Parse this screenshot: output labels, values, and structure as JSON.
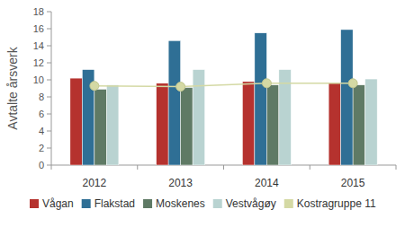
{
  "chart_data": {
    "type": "bar",
    "y_label": "Avtalte årsverk",
    "categories": [
      "2012",
      "2013",
      "2014",
      "2015"
    ],
    "series": [
      {
        "name": "Vågan",
        "color": "#b5322e",
        "values": [
          10.2,
          9.6,
          9.8,
          9.6
        ]
      },
      {
        "name": "Flakstad",
        "color": "#2f6f95",
        "values": [
          11.2,
          14.6,
          15.5,
          15.9
        ]
      },
      {
        "name": "Moskenes",
        "color": "#5f7a65",
        "values": [
          8.9,
          9.1,
          9.4,
          9.4
        ]
      },
      {
        "name": "Vestvågøy",
        "color": "#b9d3d1",
        "values": [
          9.4,
          11.2,
          11.2,
          10.1
        ]
      },
      {
        "name": "Kostragruppe 11",
        "color": "#d4d9a4",
        "type": "line",
        "marker": "circle",
        "values": [
          9.3,
          9.2,
          9.6,
          9.6
        ]
      }
    ],
    "ylim": [
      0,
      18
    ],
    "yticks": [
      0,
      2,
      4,
      6,
      8,
      10,
      12,
      14,
      16,
      18
    ],
    "grid": false,
    "legend": "bottom"
  }
}
